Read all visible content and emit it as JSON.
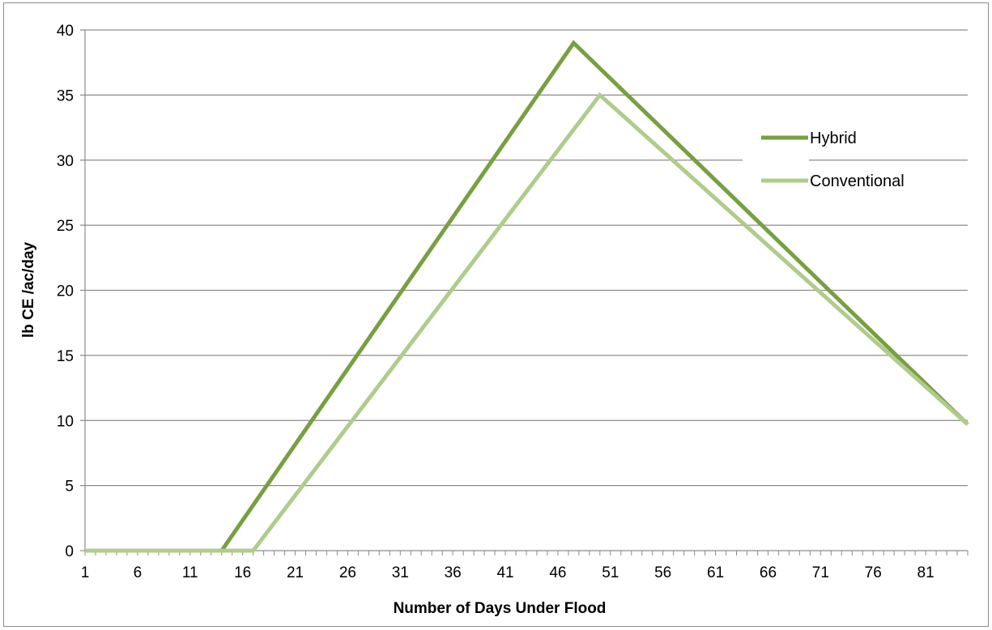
{
  "chart_data": {
    "type": "line",
    "title": "",
    "xlabel": "Number of Days Under Flood",
    "ylabel": "lb CE /ac/day",
    "xlim": [
      1,
      85
    ],
    "ylim": [
      0,
      40
    ],
    "x_tick_labels": [
      1,
      6,
      11,
      16,
      21,
      26,
      31,
      36,
      41,
      46,
      51,
      56,
      61,
      66,
      71,
      76,
      81
    ],
    "y_tick_labels": [
      0,
      5,
      10,
      15,
      20,
      25,
      30,
      35,
      40
    ],
    "grid": "horizontal",
    "legend": "right",
    "series": [
      {
        "name": "Hybrid",
        "color": "#77a040",
        "points": [
          [
            1,
            0
          ],
          [
            14,
            0
          ],
          [
            47.5,
            39
          ],
          [
            85,
            9.7
          ]
        ]
      },
      {
        "name": "Conventional",
        "color": "#b0cc8c",
        "points": [
          [
            1,
            0
          ],
          [
            17,
            0
          ],
          [
            50,
            35
          ],
          [
            85,
            9.7
          ]
        ]
      }
    ]
  }
}
